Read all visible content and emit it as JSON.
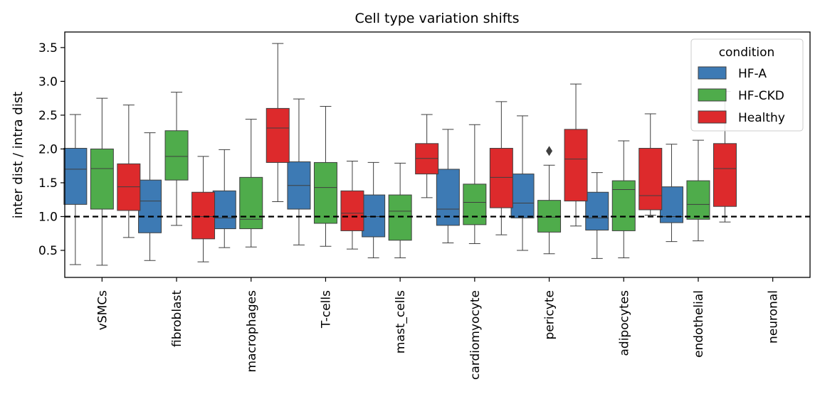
{
  "chart_data": {
    "type": "box",
    "title": "Cell type variation shifts",
    "xlabel": "",
    "ylabel": "inter dist / intra dist",
    "ylim": [
      0.1,
      3.73
    ],
    "yticks": [
      0.5,
      1.0,
      1.5,
      2.0,
      2.5,
      3.0,
      3.5
    ],
    "ytick_labels": [
      "0.5",
      "1.0",
      "1.5",
      "2.0",
      "2.5",
      "3.0",
      "3.5"
    ],
    "reference_line": 1.0,
    "grid": false,
    "legend": {
      "title": "condition",
      "placement": "top-right"
    },
    "categories": [
      "vSMCs",
      "fibroblast",
      "macrophages",
      "T-cells",
      "mast_cells",
      "cardiomyocyte",
      "pericyte",
      "adipocytes",
      "endothelial",
      "neuronal"
    ],
    "series": [
      {
        "name": "HF-A",
        "color": "#3d7ab4",
        "boxes": [
          {
            "whislo": 0.29,
            "q1": 1.18,
            "med": 1.7,
            "q3": 2.01,
            "whishi": 2.51
          },
          {
            "whislo": 0.35,
            "q1": 0.76,
            "med": 1.23,
            "q3": 1.54,
            "whishi": 2.24
          },
          {
            "whislo": 0.54,
            "q1": 0.82,
            "med": 0.98,
            "q3": 1.38,
            "whishi": 1.99
          },
          {
            "whislo": 0.58,
            "q1": 1.11,
            "med": 1.46,
            "q3": 1.81,
            "whishi": 2.74
          },
          {
            "whislo": 0.39,
            "q1": 0.7,
            "med": 1.0,
            "q3": 1.32,
            "whishi": 1.8
          },
          {
            "whislo": 0.61,
            "q1": 0.87,
            "med": 1.11,
            "q3": 1.7,
            "whishi": 2.29
          },
          {
            "whislo": 0.5,
            "q1": 0.98,
            "med": 1.2,
            "q3": 1.63,
            "whishi": 2.49
          },
          {
            "whislo": 0.38,
            "q1": 0.8,
            "med": 0.98,
            "q3": 1.36,
            "whishi": 1.65
          },
          {
            "whislo": 0.63,
            "q1": 0.91,
            "med": 1.0,
            "q3": 1.44,
            "whishi": 2.07
          },
          null
        ]
      },
      {
        "name": "HF-CKD",
        "color": "#4fac4b",
        "boxes": [
          {
            "whislo": 0.28,
            "q1": 1.11,
            "med": 1.71,
            "q3": 2.0,
            "whishi": 2.75
          },
          {
            "whislo": 0.87,
            "q1": 1.54,
            "med": 1.89,
            "q3": 2.27,
            "whishi": 2.84
          },
          {
            "whislo": 0.55,
            "q1": 0.82,
            "med": 0.96,
            "q3": 1.58,
            "whishi": 2.44
          },
          {
            "whislo": 0.56,
            "q1": 0.9,
            "med": 1.43,
            "q3": 1.8,
            "whishi": 2.63
          },
          {
            "whislo": 0.39,
            "q1": 0.65,
            "med": 1.08,
            "q3": 1.32,
            "whishi": 1.79
          },
          {
            "whislo": 0.6,
            "q1": 0.88,
            "med": 1.21,
            "q3": 1.48,
            "whishi": 2.36
          },
          {
            "whislo": 0.45,
            "q1": 0.77,
            "med": 0.99,
            "q3": 1.24,
            "whishi": 1.76,
            "fliers": [
              1.97
            ]
          },
          {
            "whislo": 0.39,
            "q1": 0.79,
            "med": 1.4,
            "q3": 1.53,
            "whishi": 2.12
          },
          {
            "whislo": 0.64,
            "q1": 0.96,
            "med": 1.18,
            "q3": 1.53,
            "whishi": 2.13
          },
          null
        ]
      },
      {
        "name": "Healthy",
        "color": "#dd2a2c",
        "boxes": [
          {
            "whislo": 0.69,
            "q1": 1.09,
            "med": 1.44,
            "q3": 1.78,
            "whishi": 2.65
          },
          {
            "whislo": 0.33,
            "q1": 0.67,
            "med": 1.0,
            "q3": 1.36,
            "whishi": 1.89
          },
          {
            "whislo": 1.22,
            "q1": 1.8,
            "med": 2.31,
            "q3": 2.6,
            "whishi": 3.56
          },
          {
            "whislo": 0.52,
            "q1": 0.79,
            "med": 1.05,
            "q3": 1.38,
            "whishi": 1.82
          },
          {
            "whislo": 1.28,
            "q1": 1.63,
            "med": 1.86,
            "q3": 2.08,
            "whishi": 2.51
          },
          {
            "whislo": 0.73,
            "q1": 1.13,
            "med": 1.58,
            "q3": 2.01,
            "whishi": 2.7
          },
          {
            "whislo": 0.86,
            "q1": 1.23,
            "med": 1.85,
            "q3": 2.29,
            "whishi": 2.96
          },
          {
            "whislo": 1.02,
            "q1": 1.1,
            "med": 1.31,
            "q3": 2.01,
            "whishi": 2.52
          },
          {
            "whislo": 0.92,
            "q1": 1.15,
            "med": 1.71,
            "q3": 2.08,
            "whishi": 2.85
          },
          null
        ]
      }
    ]
  }
}
